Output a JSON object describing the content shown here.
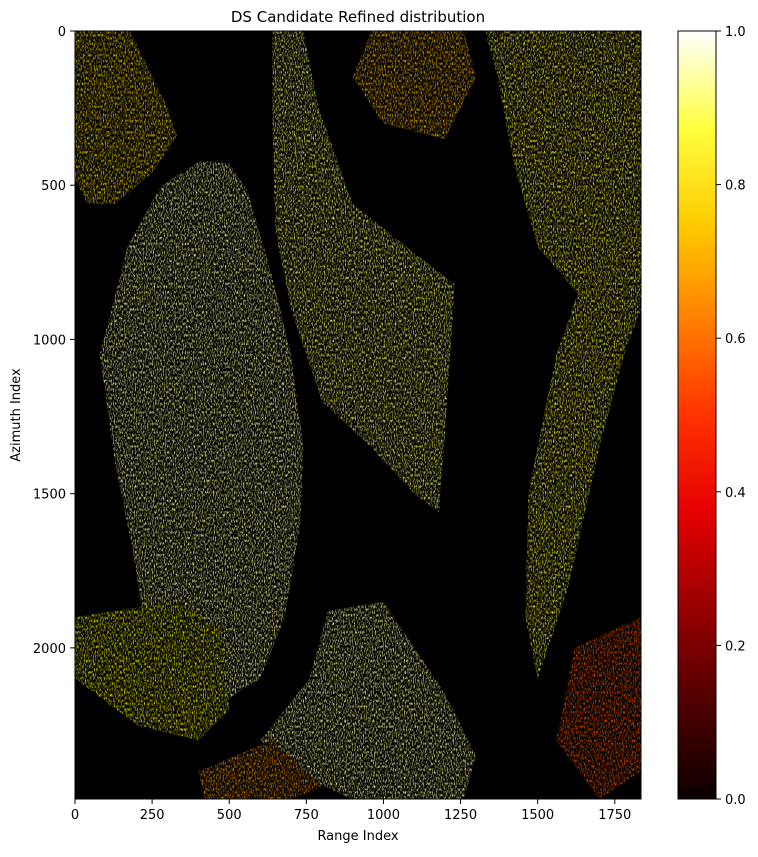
{
  "chart_data": {
    "type": "heatmap",
    "title": "DS Candidate Refined distribution",
    "xlabel": "Range Index",
    "ylabel": "Azimuth Index",
    "xlim": [
      0,
      1835
    ],
    "ylim": [
      2490,
      0
    ],
    "x_ticks": [
      0,
      250,
      500,
      750,
      1000,
      1250,
      1500,
      1750
    ],
    "y_ticks": [
      0,
      500,
      1000,
      1500,
      2000
    ],
    "colormap": "hot",
    "colorbar": {
      "ticks": [
        0.0,
        0.2,
        0.4,
        0.6,
        0.8,
        1.0
      ],
      "tick_labels": [
        "0.0",
        "0.2",
        "0.4",
        "0.6",
        "0.8",
        "1.0"
      ],
      "range": [
        0.0,
        1.0
      ]
    },
    "background_value": 0.0,
    "grid": false,
    "regions": [
      {
        "name": "upper-left-strip",
        "intensity": 0.7,
        "poly": [
          [
            0,
            0
          ],
          [
            180,
            0
          ],
          [
            300,
            250
          ],
          [
            330,
            340
          ],
          [
            250,
            460
          ],
          [
            130,
            560
          ],
          [
            40,
            560
          ],
          [
            0,
            480
          ]
        ]
      },
      {
        "name": "left-central-ridge",
        "intensity": 0.9,
        "poly": [
          [
            410,
            420
          ],
          [
            500,
            430
          ],
          [
            560,
            520
          ],
          [
            640,
            800
          ],
          [
            700,
            1050
          ],
          [
            740,
            1350
          ],
          [
            730,
            1600
          ],
          [
            680,
            1900
          ],
          [
            600,
            2100
          ],
          [
            440,
            2200
          ],
          [
            300,
            2100
          ],
          [
            220,
            1900
          ],
          [
            190,
            1700
          ],
          [
            130,
            1400
          ],
          [
            80,
            1050
          ],
          [
            170,
            700
          ],
          [
            280,
            500
          ]
        ]
      },
      {
        "name": "central-diagonal",
        "intensity": 0.85,
        "poly": [
          [
            640,
            0
          ],
          [
            740,
            0
          ],
          [
            790,
            250
          ],
          [
            900,
            560
          ],
          [
            1100,
            720
          ],
          [
            1230,
            820
          ],
          [
            1220,
            1000
          ],
          [
            1200,
            1300
          ],
          [
            1180,
            1560
          ],
          [
            1100,
            1500
          ],
          [
            950,
            1340
          ],
          [
            800,
            1200
          ],
          [
            700,
            900
          ],
          [
            650,
            650
          ],
          [
            640,
            300
          ]
        ]
      },
      {
        "name": "upper-middle",
        "intensity": 0.65,
        "poly": [
          [
            960,
            0
          ],
          [
            1260,
            0
          ],
          [
            1300,
            150
          ],
          [
            1200,
            350
          ],
          [
            1000,
            300
          ],
          [
            900,
            150
          ]
        ]
      },
      {
        "name": "right-strip",
        "intensity": 0.8,
        "poly": [
          [
            1330,
            0
          ],
          [
            1835,
            0
          ],
          [
            1835,
            900
          ],
          [
            1780,
            1050
          ],
          [
            1700,
            1350
          ],
          [
            1600,
            1800
          ],
          [
            1500,
            2100
          ],
          [
            1460,
            1900
          ],
          [
            1470,
            1500
          ],
          [
            1560,
            1050
          ],
          [
            1630,
            850
          ],
          [
            1500,
            700
          ],
          [
            1420,
            420
          ],
          [
            1370,
            150
          ]
        ]
      },
      {
        "name": "lower-left-cluster",
        "intensity": 0.75,
        "poly": [
          [
            0,
            1900
          ],
          [
            330,
            1850
          ],
          [
            480,
            1950
          ],
          [
            500,
            2200
          ],
          [
            400,
            2300
          ],
          [
            200,
            2250
          ],
          [
            0,
            2100
          ]
        ]
      },
      {
        "name": "lower-central-cluster",
        "intensity": 0.9,
        "poly": [
          [
            820,
            1880
          ],
          [
            1000,
            1850
          ],
          [
            1100,
            2000
          ],
          [
            1200,
            2150
          ],
          [
            1300,
            2350
          ],
          [
            1260,
            2490
          ],
          [
            900,
            2490
          ],
          [
            700,
            2400
          ],
          [
            600,
            2300
          ],
          [
            760,
            2100
          ]
        ]
      },
      {
        "name": "bottom-left-band",
        "intensity": 0.6,
        "poly": [
          [
            400,
            2400
          ],
          [
            640,
            2300
          ],
          [
            800,
            2450
          ],
          [
            700,
            2490
          ],
          [
            420,
            2490
          ]
        ]
      },
      {
        "name": "lower-right-patch",
        "intensity": 0.5,
        "poly": [
          [
            1620,
            2000
          ],
          [
            1835,
            1900
          ],
          [
            1835,
            2400
          ],
          [
            1700,
            2490
          ],
          [
            1560,
            2300
          ]
        ]
      }
    ]
  }
}
